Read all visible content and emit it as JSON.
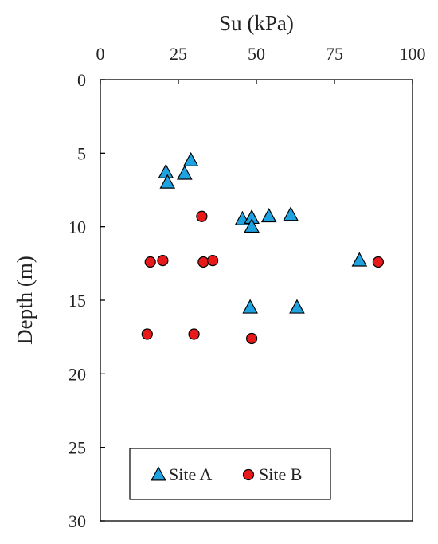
{
  "chart_data": {
    "type": "scatter",
    "xlabel": "Su (kPa)",
    "ylabel": "Depth (m)",
    "x_axis_position": "top",
    "y_axis_inverted": true,
    "xlim": [
      0,
      100
    ],
    "ylim": [
      0,
      30
    ],
    "xticks": [
      0,
      25,
      50,
      75,
      100
    ],
    "yticks": [
      0,
      5,
      10,
      15,
      20,
      25,
      30
    ],
    "grid": false,
    "legend_position": "bottom-left",
    "series": [
      {
        "name": "Site A",
        "marker": "triangle",
        "color": "#1fa3e0",
        "points": [
          {
            "x": 29,
            "y": 5.5
          },
          {
            "x": 21,
            "y": 6.3
          },
          {
            "x": 27,
            "y": 6.4
          },
          {
            "x": 21.5,
            "y": 7.0
          },
          {
            "x": 45.5,
            "y": 9.5
          },
          {
            "x": 48.5,
            "y": 9.4
          },
          {
            "x": 54,
            "y": 9.3
          },
          {
            "x": 61,
            "y": 9.2
          },
          {
            "x": 48.5,
            "y": 10.0
          },
          {
            "x": 83,
            "y": 12.3
          },
          {
            "x": 48,
            "y": 15.5
          },
          {
            "x": 63,
            "y": 15.5
          }
        ]
      },
      {
        "name": "Site B",
        "marker": "circle",
        "color": "#e8191b",
        "points": [
          {
            "x": 32.5,
            "y": 9.3
          },
          {
            "x": 16,
            "y": 12.4
          },
          {
            "x": 20,
            "y": 12.3
          },
          {
            "x": 33,
            "y": 12.4
          },
          {
            "x": 36,
            "y": 12.3
          },
          {
            "x": 89,
            "y": 12.4
          },
          {
            "x": 15,
            "y": 17.3
          },
          {
            "x": 30,
            "y": 17.3
          },
          {
            "x": 48.5,
            "y": 17.6
          }
        ]
      }
    ]
  }
}
